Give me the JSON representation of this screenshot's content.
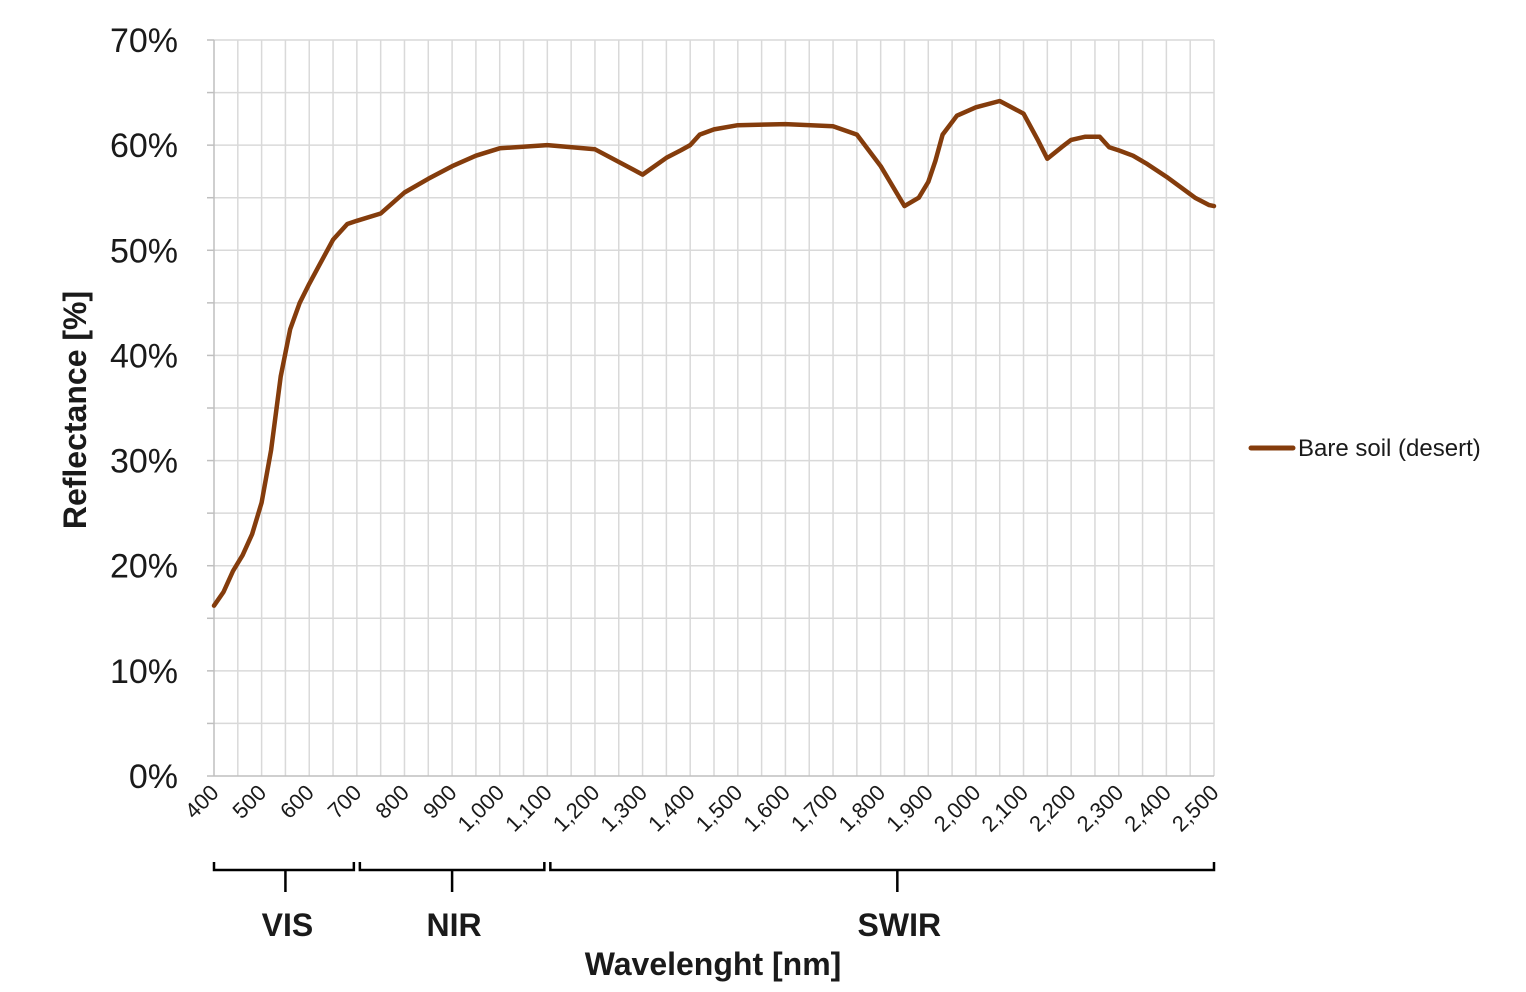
{
  "chart_data": {
    "type": "line",
    "title": "",
    "xlabel": "Wavelenght [nm]",
    "ylabel": "Reflectance [%]",
    "xlim": [
      400,
      2500
    ],
    "ylim": [
      0,
      70
    ],
    "grid": true,
    "legend_position": "right",
    "x_tick_values": [
      400,
      500,
      600,
      700,
      800,
      900,
      1000,
      1100,
      1200,
      1300,
      1400,
      1500,
      1600,
      1700,
      1800,
      1900,
      2000,
      2100,
      2200,
      2300,
      2400,
      2500
    ],
    "x_tick_labels": [
      "400",
      "500",
      "600",
      "700",
      "800",
      "900",
      "1,000",
      "1,100",
      "1,200",
      "1,300",
      "1,400",
      "1,500",
      "1,600",
      "1,700",
      "1,800",
      "1,900",
      "2,000",
      "2,100",
      "2,200",
      "2,300",
      "2,400",
      "2,500"
    ],
    "y_tick_values": [
      0,
      10,
      20,
      30,
      40,
      50,
      60,
      70
    ],
    "y_tick_labels": [
      "0%",
      "10%",
      "20%",
      "30%",
      "40%",
      "50%",
      "60%",
      "70%"
    ],
    "bands": [
      {
        "label": "VIS",
        "start": 400,
        "end": 700,
        "tick": 550
      },
      {
        "label": "NIR",
        "start": 700,
        "end": 1100,
        "tick": 900
      },
      {
        "label": "SWIR",
        "start": 1100,
        "end": 2500,
        "tick": 1835
      }
    ],
    "series": [
      {
        "name": "Bare soil (desert)",
        "color": "#843c0c",
        "x": [
          400,
          420,
          440,
          460,
          480,
          500,
          520,
          540,
          560,
          580,
          600,
          620,
          650,
          680,
          700,
          750,
          800,
          850,
          900,
          950,
          1000,
          1100,
          1200,
          1300,
          1350,
          1380,
          1400,
          1420,
          1450,
          1500,
          1600,
          1700,
          1750,
          1800,
          1850,
          1880,
          1900,
          1915,
          1930,
          1960,
          2000,
          2050,
          2100,
          2130,
          2150,
          2180,
          2200,
          2230,
          2260,
          2280,
          2300,
          2330,
          2360,
          2400,
          2430,
          2460,
          2490,
          2500
        ],
        "values": [
          16.2,
          17.5,
          19.5,
          21,
          23,
          26,
          31,
          38,
          42.5,
          45,
          46.8,
          48.5,
          51,
          52.5,
          52.8,
          53.5,
          55.5,
          56.8,
          58,
          59,
          59.7,
          60,
          59.6,
          57.2,
          58.8,
          59.5,
          60,
          61,
          61.5,
          61.9,
          62,
          61.8,
          61,
          58,
          54.2,
          55,
          56.5,
          58.5,
          61,
          62.8,
          63.6,
          64.2,
          63,
          60.5,
          58.7,
          59.8,
          60.5,
          60.8,
          60.8,
          59.8,
          59.5,
          59,
          58.2,
          57,
          56,
          55,
          54.3,
          54.2
        ]
      }
    ]
  }
}
